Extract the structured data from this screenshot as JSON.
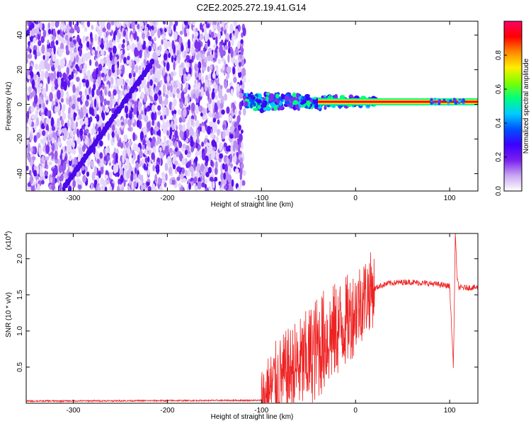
{
  "title": "C2E2.2025.272.19.41.G14",
  "chart_data": [
    {
      "type": "heatmap",
      "title": "C2E2.2025.272.19.41.G14",
      "xlabel": "Height of straight line (km)",
      "ylabel": "Frequency (Hz)",
      "xlim": [
        -350,
        130
      ],
      "ylim": [
        -50,
        48
      ],
      "xticks": [
        -300,
        -200,
        -100,
        0,
        100
      ],
      "yticks": [
        -40,
        -20,
        0,
        20,
        40
      ],
      "noise_region_x": [
        -350,
        -118
      ],
      "tone_frequency_hz": 1.5,
      "chirp_line": {
        "x_start": -310,
        "y_start": -48,
        "x_end": -215,
        "y_end": 25
      },
      "colorbar": {
        "label": "Normalized spectral amplitude",
        "range": [
          0.0,
          1.0
        ],
        "ticks": [
          "0.0",
          "0.2",
          "0.4",
          "0.6",
          "0.8"
        ],
        "colors": [
          "#ffffff",
          "#c9a6f2",
          "#7a1ff0",
          "#3b00ff",
          "#0050ff",
          "#00ccff",
          "#00ff80",
          "#7dff00",
          "#ffee00",
          "#ff8800",
          "#ff0000",
          "#ff0066"
        ]
      }
    },
    {
      "type": "line",
      "xlabel": "Height of straight line (km)",
      "ylabel": "SNR (10 * v/v)",
      "scale_label": "(x10",
      "scale_exponent": "4",
      "scale_close": ")",
      "xlim": [
        -350,
        130
      ],
      "ylim": [
        0,
        2.35
      ],
      "xticks": [
        -300,
        -200,
        -100,
        0,
        100
      ],
      "yticks": [
        "0.5",
        "1.0",
        "1.5",
        "2.0"
      ],
      "color": "#ee2222",
      "series": [
        {
          "name": "SNR",
          "x": [
            -350,
            -100,
            -95,
            -85,
            -75,
            -65,
            -55,
            -45,
            -35,
            -25,
            -15,
            -5,
            5,
            15,
            25,
            35,
            45,
            55,
            65,
            75,
            85,
            95,
            100,
            104,
            106,
            108,
            110,
            115,
            130
          ],
          "y": [
            0.03,
            0.04,
            0.08,
            0.28,
            0.38,
            0.48,
            0.55,
            0.7,
            0.85,
            0.95,
            1.08,
            1.2,
            1.4,
            1.55,
            1.62,
            1.66,
            1.67,
            1.68,
            1.67,
            1.66,
            1.65,
            1.63,
            1.62,
            0.5,
            2.35,
            1.7,
            1.6,
            1.6,
            1.6
          ]
        }
      ]
    }
  ]
}
